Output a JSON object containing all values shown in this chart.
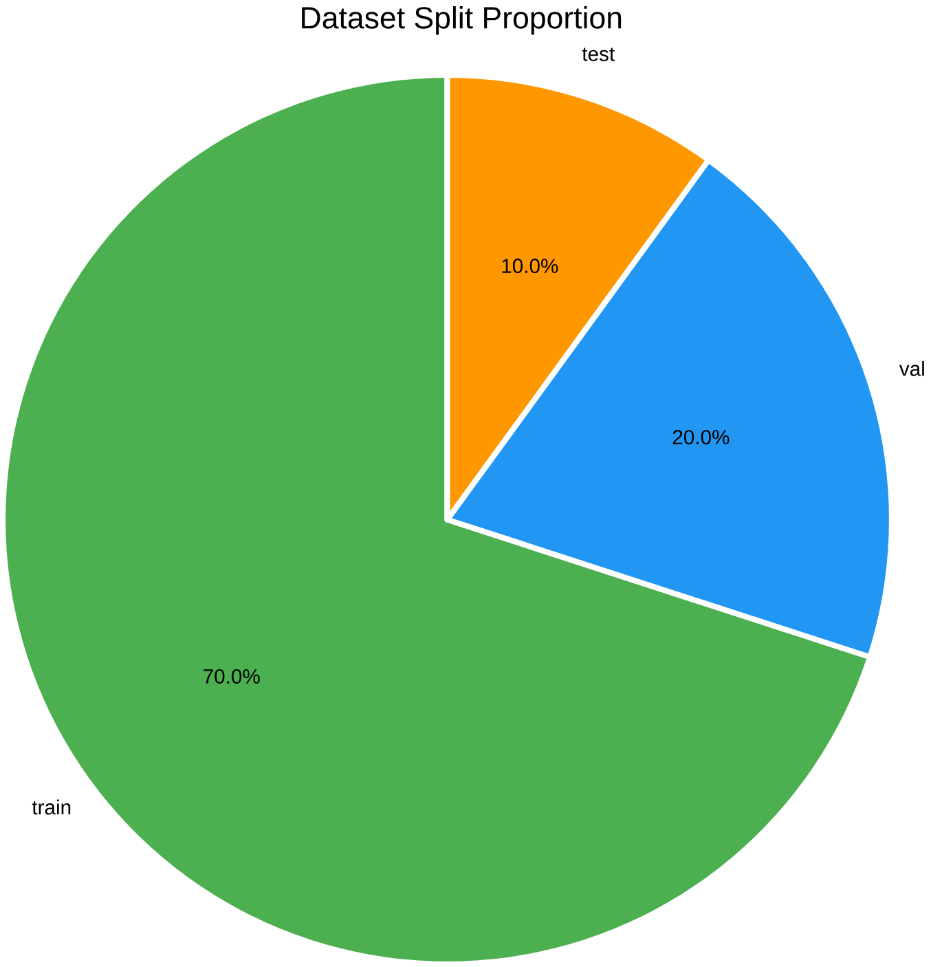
{
  "chart_data": {
    "type": "pie",
    "title": "Dataset Split Proportion",
    "categories": [
      "train",
      "val",
      "test"
    ],
    "values": [
      70,
      20,
      10
    ],
    "value_labels": [
      "70.0%",
      "20.0%",
      "10.0%"
    ],
    "colors": [
      "#4caf50",
      "#2196f3",
      "#ff9800"
    ]
  }
}
